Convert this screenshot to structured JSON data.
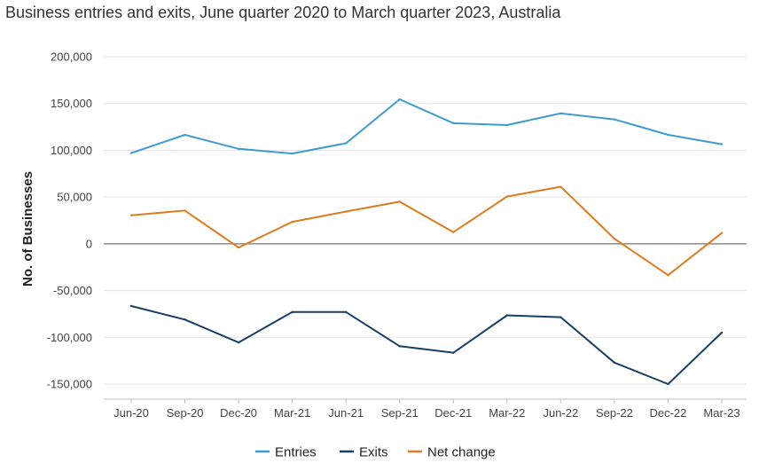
{
  "chart_data": {
    "type": "line",
    "title": "Business entries and exits, June quarter 2020 to March quarter 2023, Australia",
    "ylabel": "No. of Businesses",
    "xlabel": "",
    "categories": [
      "Jun-20",
      "Sep-20",
      "Dec-20",
      "Mar-21",
      "Jun-21",
      "Sep-21",
      "Dec-21",
      "Mar-22",
      "Jun-22",
      "Sep-22",
      "Dec-22",
      "Mar-23"
    ],
    "ylim": [
      -150000,
      200000
    ],
    "yticks": [
      200000,
      150000,
      100000,
      50000,
      0,
      -50000,
      -100000,
      -150000
    ],
    "ytick_labels": [
      "200,000",
      "150,000",
      "100,000",
      "50,000",
      "0",
      "-50,000",
      "-100,000",
      "-150,000"
    ],
    "grid": true,
    "legend_position": "bottom",
    "series": [
      {
        "name": "Entries",
        "color": "#3e9bd0",
        "values": [
          97000,
          116500,
          101500,
          96500,
          107500,
          154500,
          129000,
          127000,
          139500,
          133000,
          116500,
          106500
        ]
      },
      {
        "name": "Exits",
        "color": "#183f66",
        "values": [
          -66500,
          -81000,
          -105500,
          -73000,
          -73000,
          -109500,
          -116500,
          -76500,
          -78500,
          -127000,
          -150000,
          -95000
        ]
      },
      {
        "name": "Net change",
        "color": "#de7b1d",
        "values": [
          30500,
          35500,
          -4000,
          23500,
          34500,
          45000,
          12500,
          50500,
          61000,
          5500,
          -33500,
          11500
        ]
      }
    ]
  }
}
